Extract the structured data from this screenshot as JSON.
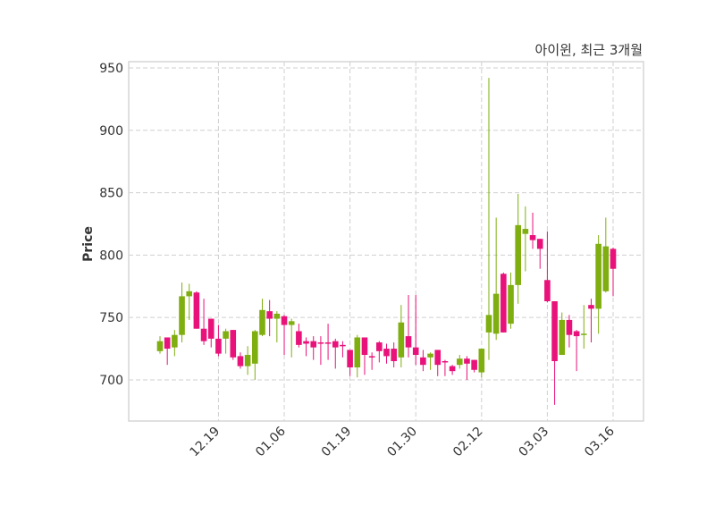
{
  "chart_data": {
    "type": "candlestick",
    "title": "아이윈, 최근 3개월",
    "xlabel": "",
    "ylabel": "Price",
    "ylim": [
      667,
      955
    ],
    "yticks": [
      700,
      750,
      800,
      850,
      900,
      950
    ],
    "xticks": [
      {
        "index": 9,
        "label": "12.19"
      },
      {
        "index": 18,
        "label": "01.06"
      },
      {
        "index": 27,
        "label": "01.19"
      },
      {
        "index": 36,
        "label": "01.30"
      },
      {
        "index": 45,
        "label": "02.12"
      },
      {
        "index": 54,
        "label": "03.03"
      },
      {
        "index": 63,
        "label": "03.16"
      }
    ],
    "grid": true,
    "colors": {
      "up": "#7fae10",
      "down": "#e8127a"
    },
    "fields": [
      "open",
      "high",
      "low",
      "close"
    ],
    "candles": [
      [
        723,
        735,
        721,
        731
      ],
      [
        734,
        734,
        712,
        725
      ],
      [
        726,
        740,
        719,
        736
      ],
      [
        736,
        778,
        730,
        767
      ],
      [
        767,
        777,
        748,
        771
      ],
      [
        770,
        771,
        741,
        741
      ],
      [
        741,
        765,
        728,
        731
      ],
      [
        749,
        749,
        726,
        733
      ],
      [
        733,
        744,
        719,
        721
      ],
      [
        733,
        741,
        721,
        739
      ],
      [
        740,
        740,
        716,
        718
      ],
      [
        719,
        722,
        709,
        711
      ],
      [
        711,
        727,
        704,
        720
      ],
      [
        713,
        740,
        700,
        739
      ],
      [
        736,
        765,
        735,
        756
      ],
      [
        755,
        764,
        735,
        749
      ],
      [
        749,
        755,
        730,
        753
      ],
      [
        751,
        752,
        720,
        744
      ],
      [
        744,
        749,
        718,
        747
      ],
      [
        739,
        745,
        726,
        728
      ],
      [
        731,
        734,
        719,
        729
      ],
      [
        731,
        735,
        716,
        726
      ],
      [
        730,
        735,
        712,
        730
      ],
      [
        730,
        745,
        716,
        730
      ],
      [
        731,
        733,
        709,
        726
      ],
      [
        728,
        731,
        718,
        728
      ],
      [
        724,
        724,
        703,
        710
      ],
      [
        710,
        736,
        702,
        734
      ],
      [
        734,
        734,
        704,
        720
      ],
      [
        719,
        722,
        708,
        719
      ],
      [
        730,
        731,
        714,
        723
      ],
      [
        725,
        729,
        713,
        719
      ],
      [
        725,
        730,
        710,
        715
      ],
      [
        718,
        760,
        710,
        746
      ],
      [
        735,
        768,
        718,
        726
      ],
      [
        726,
        768,
        712,
        720
      ],
      [
        718,
        724,
        707,
        712
      ],
      [
        718,
        722,
        708,
        721
      ],
      [
        724,
        724,
        703,
        712
      ],
      [
        715,
        716,
        703,
        715
      ],
      [
        711,
        712,
        704,
        707
      ],
      [
        712,
        720,
        709,
        717
      ],
      [
        717,
        719,
        700,
        713
      ],
      [
        716,
        716,
        706,
        708
      ],
      [
        706,
        725,
        702,
        725
      ],
      [
        738,
        942,
        716,
        752
      ],
      [
        737,
        830,
        732,
        769
      ],
      [
        785,
        786,
        738,
        738
      ],
      [
        745,
        786,
        741,
        776
      ],
      [
        776,
        849,
        761,
        824
      ],
      [
        817,
        839,
        787,
        821
      ],
      [
        816,
        834,
        805,
        812
      ],
      [
        813,
        813,
        789,
        805
      ],
      [
        780,
        819,
        762,
        763
      ],
      [
        763,
        763,
        680,
        715
      ],
      [
        720,
        754,
        720,
        748
      ],
      [
        748,
        752,
        726,
        736
      ],
      [
        739,
        740,
        707,
        735
      ],
      [
        736,
        760,
        725,
        737
      ],
      [
        760,
        765,
        730,
        757
      ],
      [
        757,
        816,
        737,
        809
      ],
      [
        771,
        830,
        770,
        807
      ],
      [
        805,
        806,
        767,
        789
      ]
    ]
  }
}
